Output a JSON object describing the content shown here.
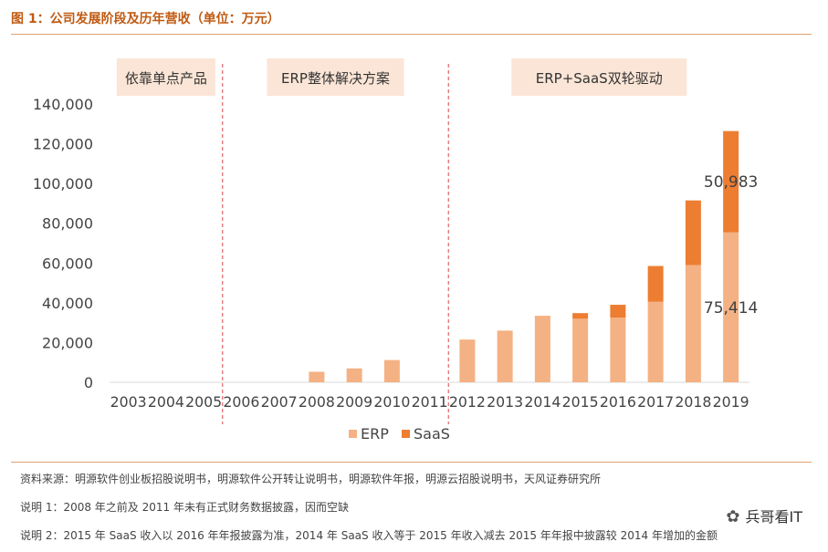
{
  "title": "图 1：公司发展阶段及历年营收（单位：万元）",
  "notes": [
    "资料来源：明源软件创业板招股说明书，明源软件公开转让说明书，明源软件年报，明源云招股说明书，天风证券研究所",
    "说明 1：2008 年之前及 2011 年未有正式财务数据披露，因而空缺",
    "说明 2：2015 年 SaaS 收入以 2016 年年报披露为准，2014 年 SaaS 收入等于 2015 年收入减去 2015 年年报中披露较 2014 年增加的金额"
  ],
  "watermark": "兵哥看IT",
  "colors": {
    "erp": "#f4b183",
    "saas": "#ed7d31",
    "phase_box": "#fbe5d6",
    "divider": "#e06666"
  },
  "chart_data": {
    "type": "bar",
    "stacked": true,
    "categories": [
      "2003",
      "2004",
      "2005",
      "2006",
      "2007",
      "2008",
      "2009",
      "2010",
      "2011",
      "2012",
      "2013",
      "2014",
      "2015",
      "2016",
      "2017",
      "2018",
      "2019"
    ],
    "series": [
      {
        "name": "ERP",
        "values": [
          0,
          0,
          0,
          0,
          0,
          5300,
          7000,
          11200,
          0,
          21500,
          26000,
          33000,
          32000,
          32500,
          40500,
          59000,
          75414
        ]
      },
      {
        "name": "SaaS",
        "values": [
          0,
          0,
          0,
          0,
          0,
          0,
          0,
          0,
          0,
          0,
          0,
          300,
          2800,
          6500,
          18000,
          32500,
          50983
        ]
      }
    ],
    "ylim": [
      0,
      140000
    ],
    "yticks": [
      "0",
      "20,000",
      "40,000",
      "60,000",
      "80,000",
      "100,000",
      "120,000",
      "140,000"
    ],
    "ytick_values": [
      0,
      20000,
      40000,
      60000,
      80000,
      100000,
      120000,
      140000
    ],
    "phases": [
      {
        "label": "依靠单点产品",
        "from": "2003",
        "to": "2005"
      },
      {
        "label": "ERP整体解决方案",
        "from": "2006",
        "to": "2011"
      },
      {
        "label": "ERP+SaaS双轮驱动",
        "from": "2012",
        "to": "2019"
      }
    ],
    "annotations": [
      {
        "text": "50,983",
        "category": "2019",
        "series": "SaaS"
      },
      {
        "text": "75,414",
        "category": "2019",
        "series": "ERP"
      }
    ],
    "legend": "bottom",
    "grid": false,
    "xlabel": "",
    "ylabel": ""
  }
}
